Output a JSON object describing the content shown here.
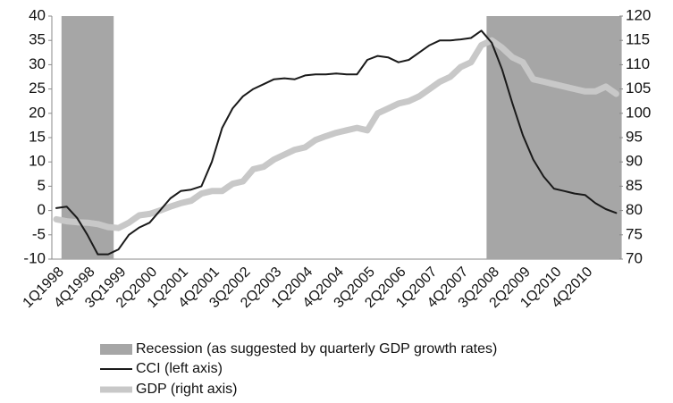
{
  "chart_data": {
    "type": "line",
    "categories": [
      "1Q1998",
      null,
      null,
      "4Q1998",
      null,
      null,
      "3Q1999",
      null,
      null,
      "2Q2000",
      null,
      null,
      "1Q2001",
      null,
      null,
      "4Q2001",
      null,
      null,
      "3Q2002",
      null,
      null,
      "2Q2003",
      null,
      null,
      "1Q2004",
      null,
      null,
      "4Q2004",
      null,
      null,
      "3Q2005",
      null,
      null,
      "2Q2006",
      null,
      null,
      "1Q2007",
      null,
      null,
      "4Q2007",
      null,
      null,
      "3Q2008",
      null,
      null,
      "2Q2009",
      null,
      null,
      "1Q2010",
      null,
      null,
      "4Q2010",
      null,
      null,
      null
    ],
    "series": [
      {
        "name": "Recession (as suggested by quarterly GDP growth rates)",
        "type": "band",
        "color": "#a6a6a6",
        "values": [
          null,
          1,
          1,
          1,
          1,
          1,
          null,
          null,
          null,
          null,
          null,
          null,
          null,
          null,
          null,
          null,
          null,
          null,
          null,
          null,
          null,
          null,
          null,
          null,
          null,
          null,
          null,
          null,
          null,
          null,
          null,
          null,
          null,
          null,
          null,
          null,
          null,
          null,
          null,
          null,
          null,
          null,
          1,
          1,
          1,
          1,
          1,
          1,
          1,
          1,
          1,
          1,
          1,
          1,
          1
        ]
      },
      {
        "name": "CCI (left axis)",
        "type": "line",
        "color": "#1a1a1a",
        "width": 2,
        "values": [
          0.5,
          0.8,
          -1.5,
          -5,
          -9,
          -9,
          -8,
          -5,
          -3.5,
          -2.5,
          0,
          2.5,
          4,
          4.3,
          5,
          10,
          17,
          21,
          23.5,
          25,
          26,
          27,
          27.2,
          27,
          27.8,
          28,
          28,
          28.2,
          28,
          28,
          31,
          31.8,
          31.5,
          30.5,
          31,
          32.5,
          34,
          35,
          35,
          35.2,
          35.5,
          37,
          34.5,
          29,
          22,
          15.5,
          10.5,
          7,
          4.5,
          4,
          3.5,
          3.2,
          1.5,
          0.3,
          -0.5
        ]
      },
      {
        "name": "GDP (right axis)",
        "type": "line",
        "axis": "y2",
        "color": "#c8c8c8",
        "width": 7,
        "values": [
          78.2,
          77.8,
          77.6,
          77.5,
          77.2,
          76.6,
          76.4,
          77.5,
          79,
          79.3,
          80,
          80.8,
          81.5,
          82,
          83.5,
          84,
          84,
          85.5,
          86,
          88.5,
          89,
          90.5,
          91.5,
          92.5,
          93,
          94.5,
          95.3,
          96,
          96.5,
          97,
          96.5,
          100,
          101,
          102,
          102.5,
          103.5,
          105,
          106.5,
          107.5,
          109.5,
          110.5,
          114,
          115,
          113.5,
          111.5,
          110.5,
          107,
          106.5,
          106,
          105.5,
          105,
          104.5,
          104.5,
          105.5,
          104
        ]
      }
    ],
    "ylim": [
      -10,
      40
    ],
    "yticks": [
      -10,
      -5,
      0,
      5,
      10,
      15,
      20,
      25,
      30,
      35,
      40
    ],
    "y2lim": [
      70,
      120
    ],
    "y2ticks": [
      70,
      75,
      80,
      85,
      90,
      95,
      100,
      105,
      110,
      115,
      120
    ],
    "grid": false,
    "legend": "bottom"
  }
}
